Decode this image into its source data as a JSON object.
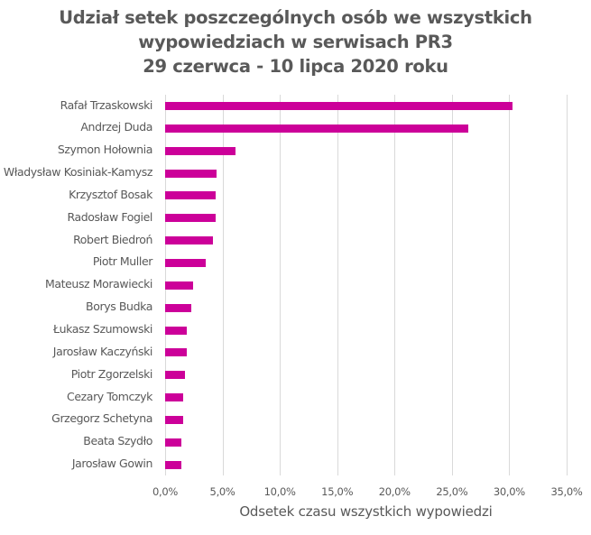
{
  "chart_data": {
    "type": "bar",
    "orientation": "horizontal",
    "title": "Udział setek poszczególnych osób we wszystkich wypowiedziach w serwisach PR3 29 czerwca - 10 lipca 2020 roku",
    "title_lines": [
      "Udział setek poszczególnych osób we wszystkich",
      "wypowiedziach w serwisach PR3",
      "29 czerwca - 10 lipca 2020 roku"
    ],
    "xlabel": "Odsetek czasu wszystkich wypowiedzi",
    "ylabel": "",
    "xlim": [
      0,
      35
    ],
    "x_ticks": [
      "0,0%",
      "5,0%",
      "10,0%",
      "15,0%",
      "20,0%",
      "25,0%",
      "30,0%",
      "35,0%"
    ],
    "grid": true,
    "legend": null,
    "bar_color": "#cc0099",
    "categories": [
      "Rafał Trzaskowski",
      "Andrzej Duda",
      "Szymon Hołownia",
      "Władysław Kosiniak-Kamysz",
      "Krzysztof Bosak",
      "Radosław Fogiel",
      "Robert Biedroń",
      "Piotr Muller",
      "Mateusz Morawiecki",
      "Borys Budka",
      "Łukasz Szumowski",
      "Jarosław Kaczyński",
      "Piotr Zgorzelski",
      "Cezary Tomczyk",
      "Grzegorz Schetyna",
      "Beata Szydło",
      "Jarosław Gowin"
    ],
    "values": [
      30.3,
      26.4,
      6.1,
      4.5,
      4.4,
      4.4,
      4.2,
      3.5,
      2.4,
      2.3,
      1.9,
      1.9,
      1.7,
      1.6,
      1.6,
      1.4,
      1.4
    ],
    "unit": "%"
  }
}
